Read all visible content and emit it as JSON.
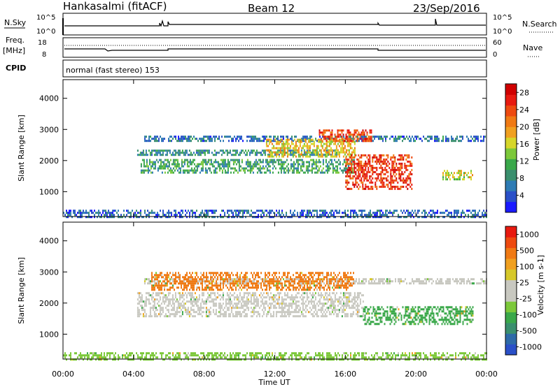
{
  "header": {
    "station": "Hankasalmi (fitACF)",
    "beam": "Beam 12",
    "date": "23/Sep/2016"
  },
  "panels": {
    "nsky": {
      "label": "N.Sky",
      "left_ticks": [
        "10^5",
        "10^0"
      ],
      "right_ticks": [
        "10^5",
        "10^0"
      ],
      "right_label": "N.Search",
      "right_style": "dotted"
    },
    "freq": {
      "label": "Freq.",
      "unit": "[MHz]",
      "left_ticks": [
        "18",
        "8"
      ],
      "right_ticks": [
        "60",
        "0"
      ],
      "right_label": "Nave",
      "right_style": "dotted"
    },
    "cpid": {
      "label": "CPID",
      "mode": "normal (fast stereo) 153"
    }
  },
  "chart_data": [
    {
      "type": "heatmap",
      "name": "power",
      "ylabel": "Slant Range [km]",
      "xlabel": "",
      "xlim": [
        0,
        24
      ],
      "ylim": [
        200,
        4600
      ],
      "yticks": [
        "1000",
        "2000",
        "3000",
        "4000"
      ],
      "colorbar": {
        "label": "Power [dB]",
        "ticks": [
          "4",
          "8",
          "12",
          "16",
          "20",
          "24",
          "28"
        ],
        "range": [
          0,
          30
        ],
        "colors": [
          "#1a1aff",
          "#2a50c8",
          "#2e7bb4",
          "#3a8f6e",
          "#3aa84a",
          "#7cc83a",
          "#d6d62a",
          "#f0a020",
          "#f07a14",
          "#ee4a10",
          "#e81a10",
          "#d00000"
        ]
      },
      "regions": [
        {
          "t": [
            4.6,
            24.0
          ],
          "r": [
            2600,
            2800
          ],
          "level": 6
        },
        {
          "t": [
            4.2,
            15.5
          ],
          "r": [
            2150,
            2350
          ],
          "level": 8
        },
        {
          "t": [
            4.4,
            16.5
          ],
          "r": [
            1600,
            2050
          ],
          "level": 10
        },
        {
          "t": [
            11.5,
            16.5
          ],
          "r": [
            2100,
            2700
          ],
          "level": 17
        },
        {
          "t": [
            14.5,
            17.5
          ],
          "r": [
            2600,
            3000
          ],
          "level": 24
        },
        {
          "t": [
            16.0,
            19.8
          ],
          "r": [
            1100,
            2200
          ],
          "level": 25
        },
        {
          "t": [
            21.5,
            23.2
          ],
          "r": [
            1400,
            1700
          ],
          "level": 16
        },
        {
          "t": [
            0.0,
            24.0
          ],
          "r": [
            200,
            420
          ],
          "level": 5
        }
      ]
    },
    {
      "type": "heatmap",
      "name": "velocity",
      "ylabel": "Slant Range [km]",
      "xlabel": "Time UT",
      "xlim": [
        0,
        24
      ],
      "ylim": [
        200,
        4600
      ],
      "xticks": [
        "00:00",
        "04:00",
        "08:00",
        "12:00",
        "16:00",
        "20:00",
        "00:00"
      ],
      "yticks": [
        "1000",
        "2000",
        "3000",
        "4000"
      ],
      "colorbar": {
        "label": "Velocity [m s-1]",
        "ticks": [
          "1000",
          "500",
          "100",
          "25",
          "-25",
          "-100",
          "-500",
          "-1000"
        ],
        "colors": [
          "#2a50c8",
          "#2e6aa8",
          "#3a8f6e",
          "#3aa84a",
          "#7cc83a",
          "#c8c8c0",
          "#c8c8c0",
          "#d6c82a",
          "#f0a020",
          "#f07a14",
          "#ee4a10",
          "#e81a10"
        ]
      },
      "regions": [
        {
          "t": [
            4.6,
            24.0
          ],
          "r": [
            2600,
            2800
          ],
          "color": "#c8c8c0"
        },
        {
          "t": [
            4.2,
            17.0
          ],
          "r": [
            1550,
            2350
          ],
          "color": "#c8c8c0"
        },
        {
          "t": [
            5.0,
            16.5
          ],
          "r": [
            2400,
            3000
          ],
          "color": "#f07a14"
        },
        {
          "t": [
            17.0,
            23.2
          ],
          "r": [
            1300,
            1900
          ],
          "color": "#3aa84a"
        },
        {
          "t": [
            0.0,
            24.0
          ],
          "r": [
            200,
            420
          ],
          "color": "#7cc83a"
        }
      ]
    }
  ]
}
